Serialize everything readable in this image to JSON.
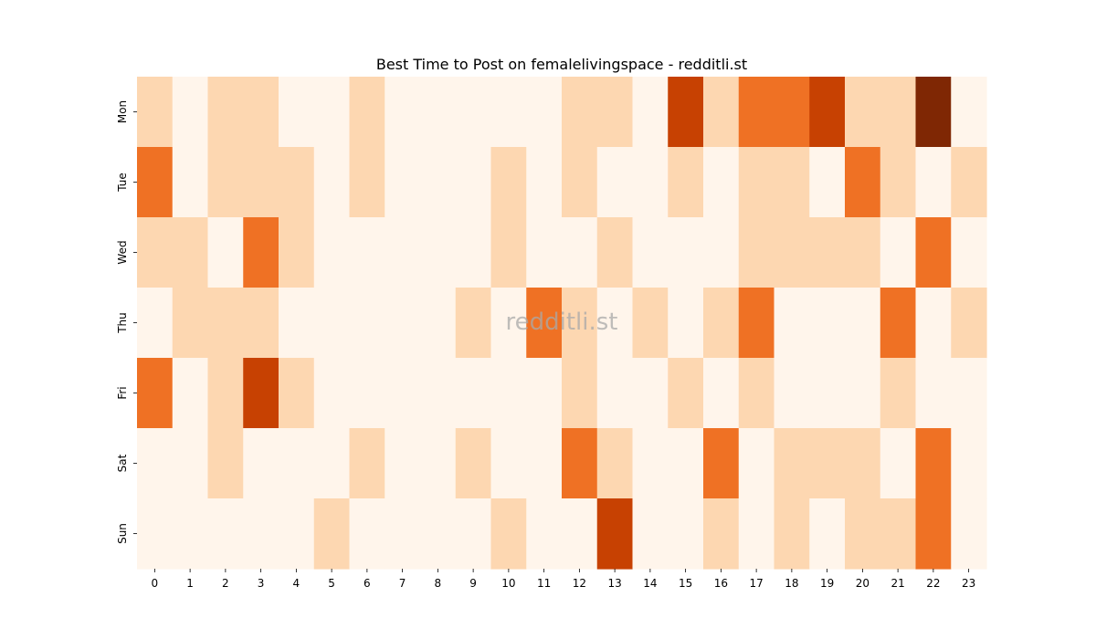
{
  "chart_data": {
    "type": "heatmap",
    "title": "Best Time to Post on femalelivingspace - redditli.st",
    "xlabel": "",
    "ylabel": "",
    "x_categories": [
      "0",
      "1",
      "2",
      "3",
      "4",
      "5",
      "6",
      "7",
      "8",
      "9",
      "10",
      "11",
      "12",
      "13",
      "14",
      "15",
      "16",
      "17",
      "18",
      "19",
      "20",
      "21",
      "22",
      "23"
    ],
    "y_categories": [
      "Mon",
      "Tue",
      "Wed",
      "Thu",
      "Fri",
      "Sat",
      "Sun"
    ],
    "values": [
      [
        1,
        0,
        1,
        1,
        0,
        0,
        1,
        0,
        0,
        0,
        0,
        0,
        1,
        1,
        0,
        4,
        1,
        3,
        3,
        4,
        1,
        1,
        5,
        0
      ],
      [
        3,
        0,
        1,
        1,
        1,
        0,
        1,
        0,
        0,
        0,
        1,
        0,
        1,
        0,
        0,
        1,
        0,
        1,
        1,
        0,
        3,
        1,
        0,
        1
      ],
      [
        1,
        1,
        0,
        3,
        1,
        0,
        0,
        0,
        0,
        0,
        1,
        0,
        0,
        1,
        0,
        0,
        0,
        1,
        1,
        1,
        1,
        0,
        3,
        0
      ],
      [
        0,
        1,
        1,
        1,
        0,
        0,
        0,
        0,
        0,
        1,
        0,
        3,
        1,
        0,
        1,
        0,
        1,
        3,
        0,
        0,
        0,
        3,
        0,
        1
      ],
      [
        3,
        0,
        1,
        4,
        1,
        0,
        0,
        0,
        0,
        0,
        0,
        0,
        1,
        0,
        0,
        1,
        0,
        1,
        0,
        0,
        0,
        1,
        0,
        0
      ],
      [
        0,
        0,
        1,
        0,
        0,
        0,
        1,
        0,
        0,
        1,
        0,
        0,
        3,
        1,
        0,
        0,
        3,
        0,
        1,
        1,
        1,
        0,
        3,
        0
      ],
      [
        0,
        0,
        0,
        0,
        0,
        1,
        0,
        0,
        0,
        0,
        1,
        0,
        0,
        4,
        0,
        0,
        1,
        0,
        1,
        0,
        1,
        1,
        3,
        0
      ]
    ],
    "colormap": "Oranges",
    "color_scale": [
      "#fff5eb",
      "#fdd0a2",
      "#fd8d3c",
      "#d94801",
      "#7f2704"
    ],
    "vmin": 0,
    "vmax": 5,
    "colorbar": false,
    "grid": false,
    "watermark": "redditli.st"
  }
}
